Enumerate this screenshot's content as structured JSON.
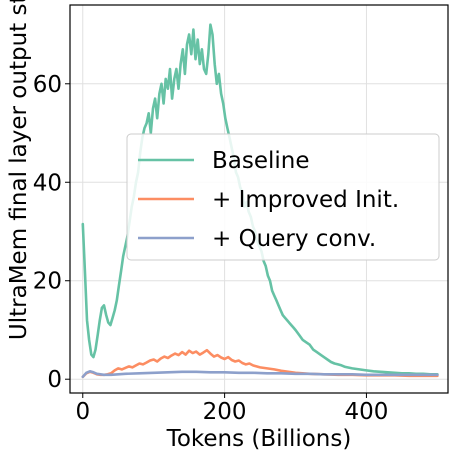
{
  "chart_data": {
    "type": "line",
    "xlabel": "Tokens (Billions)",
    "ylabel": "UltraMem final layer output std",
    "xlim": [
      -18,
      515
    ],
    "ylim": [
      -2.8,
      76
    ],
    "x_ticks": [
      0,
      200,
      400
    ],
    "y_ticks": [
      0,
      20,
      40,
      60
    ],
    "x_tick_labels": [
      "0",
      "200",
      "400"
    ],
    "y_tick_labels": [
      "0",
      "20",
      "40",
      "60"
    ],
    "grid": true,
    "legend_position": "center-right",
    "series": [
      {
        "name": "Baseline",
        "color": "#66c2a5",
        "x": [
          0,
          3,
          6,
          9,
          12,
          15,
          18,
          21,
          24,
          27,
          30,
          33,
          36,
          39,
          42,
          45,
          48,
          51,
          54,
          57,
          60,
          63,
          66,
          69,
          72,
          75,
          78,
          81,
          84,
          87,
          90,
          93,
          96,
          99,
          102,
          105,
          108,
          111,
          114,
          117,
          120,
          123,
          126,
          129,
          132,
          135,
          138,
          141,
          144,
          147,
          150,
          153,
          156,
          159,
          162,
          165,
          168,
          171,
          174,
          177,
          180,
          183,
          186,
          189,
          192,
          195,
          198,
          201,
          204,
          207,
          210,
          213,
          216,
          219,
          222,
          225,
          228,
          231,
          234,
          237,
          240,
          243,
          246,
          249,
          252,
          255,
          258,
          261,
          264,
          267,
          270,
          273,
          276,
          279,
          282,
          285,
          288,
          291,
          294,
          297,
          300,
          305,
          310,
          315,
          320,
          325,
          330,
          335,
          340,
          345,
          350,
          355,
          360,
          365,
          370,
          380,
          390,
          400,
          410,
          420,
          430,
          440,
          450,
          460,
          470,
          480,
          490,
          500
        ],
        "y": [
          31.5,
          22,
          12,
          8,
          5,
          4.5,
          6,
          9,
          12,
          14.5,
          15,
          13,
          11.5,
          11,
          12.5,
          14,
          16,
          19,
          22,
          25,
          27,
          29,
          32,
          35,
          37,
          40,
          42,
          46,
          49,
          51,
          52,
          54,
          50,
          55,
          57,
          53,
          58,
          60,
          56,
          61,
          59,
          63,
          57,
          61,
          63,
          59,
          64,
          67,
          62,
          68,
          70,
          66,
          71,
          65,
          69,
          64,
          67,
          63,
          62,
          66,
          72,
          70,
          64,
          60,
          62,
          58,
          56,
          53,
          51,
          49,
          47,
          45,
          42,
          41,
          39,
          38,
          35,
          36,
          34,
          33,
          31,
          30,
          28,
          27,
          26,
          24,
          23,
          21,
          20,
          18,
          17,
          16,
          15,
          14,
          13,
          12.5,
          12,
          11.5,
          11,
          10.5,
          10,
          9,
          8,
          7.5,
          7,
          6,
          5.5,
          5,
          4.5,
          4,
          3.5,
          3.2,
          3,
          2.8,
          2.5,
          2.2,
          2,
          1.8,
          1.6,
          1.5,
          1.4,
          1.3,
          1.2,
          1.2,
          1.1,
          1.1,
          1,
          1
        ]
      },
      {
        "name": "+ Improved Init.",
        "color": "#fc8d62",
        "x": [
          0,
          5,
          10,
          15,
          20,
          25,
          30,
          35,
          40,
          45,
          50,
          55,
          60,
          65,
          70,
          75,
          80,
          85,
          90,
          95,
          100,
          105,
          110,
          115,
          120,
          125,
          130,
          135,
          140,
          145,
          150,
          155,
          160,
          165,
          170,
          175,
          180,
          185,
          190,
          195,
          200,
          205,
          210,
          215,
          220,
          225,
          230,
          235,
          240,
          245,
          250,
          260,
          270,
          280,
          290,
          300,
          320,
          340,
          360,
          380,
          400,
          420,
          440,
          460,
          480,
          500
        ],
        "y": [
          0.5,
          1.2,
          1.5,
          1.3,
          1.0,
          0.9,
          0.9,
          1.0,
          1.2,
          1.8,
          2.2,
          2.0,
          2.3,
          2.6,
          2.4,
          2.8,
          3.2,
          3.0,
          3.4,
          3.8,
          4.0,
          3.6,
          4.2,
          4.6,
          4.3,
          4.8,
          5.2,
          4.9,
          5.5,
          5.0,
          5.8,
          5.3,
          5.6,
          5.0,
          5.4,
          5.9,
          5.2,
          4.6,
          4.9,
          4.4,
          4.1,
          4.5,
          3.9,
          3.6,
          3.8,
          3.3,
          3.0,
          3.2,
          2.8,
          2.6,
          2.4,
          2.2,
          2.0,
          1.7,
          1.5,
          1.3,
          1.1,
          1.0,
          0.9,
          0.9,
          0.8,
          0.8,
          0.8,
          0.7,
          0.7,
          0.7
        ]
      },
      {
        "name": "+ Query conv.",
        "color": "#8da0cb",
        "x": [
          0,
          5,
          10,
          15,
          20,
          30,
          40,
          50,
          60,
          80,
          100,
          120,
          140,
          160,
          180,
          200,
          220,
          240,
          260,
          280,
          300,
          320,
          340,
          360,
          380,
          400,
          420,
          440,
          460,
          480,
          500
        ],
        "y": [
          0.5,
          1.3,
          1.6,
          1.4,
          1.1,
          0.9,
          0.9,
          1.0,
          1.1,
          1.2,
          1.3,
          1.4,
          1.5,
          1.5,
          1.4,
          1.4,
          1.3,
          1.3,
          1.2,
          1.2,
          1.1,
          1.1,
          1.0,
          1.0,
          1.0,
          0.9,
          0.9,
          0.9,
          0.9,
          0.9,
          0.9
        ]
      }
    ]
  }
}
